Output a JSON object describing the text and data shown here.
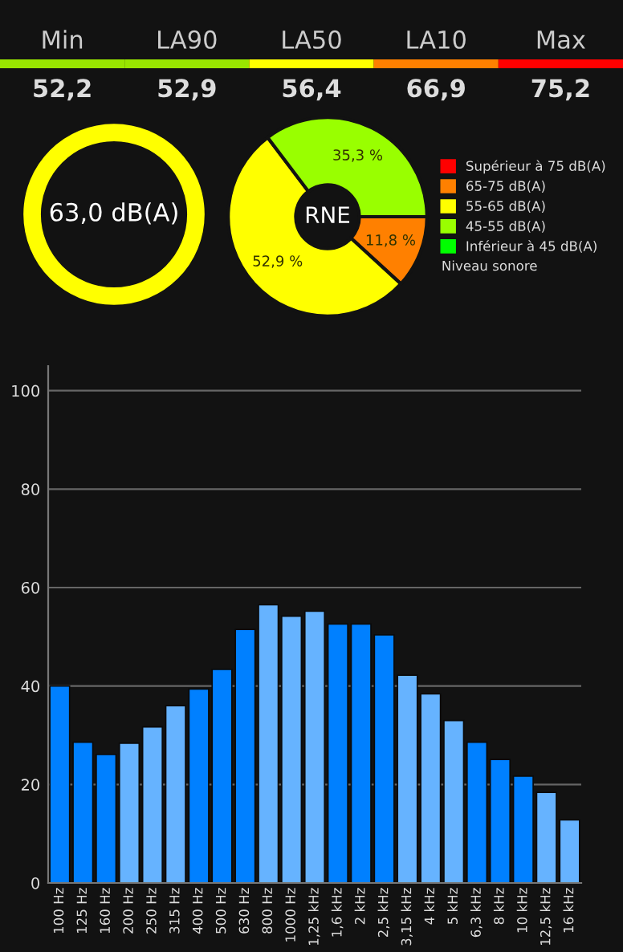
{
  "chart_data": [
    {
      "type": "other",
      "categories": [
        "Min",
        "LA90",
        "LA50",
        "LA10",
        "Max"
      ],
      "values": [
        52.2,
        52.9,
        56.4,
        66.9,
        75.2
      ],
      "colors": [
        "#99e600",
        "#99e600",
        "#ffff00",
        "#ff8000",
        "#ff0000"
      ],
      "value_labels": [
        "52,2",
        "52,9",
        "56,4",
        "66,9",
        "75,2"
      ]
    },
    {
      "type": "other",
      "annotations": [
        "63,0 dB(A)"
      ],
      "color": "#ffff00"
    },
    {
      "type": "donut",
      "categories": [
        "Supérieur à 75 dB(A)",
        "65-75 dB(A)",
        "55-65 dB(A)",
        "45-55 dB(A)",
        "Inférieur à 45 dB(A)"
      ],
      "values": [
        0,
        11.8,
        52.9,
        35.3,
        0
      ],
      "colors": [
        "#ff0000",
        "#ff8000",
        "#ffff00",
        "#99ff00",
        "#00ff00"
      ],
      "value_labels": [
        null,
        "11,8 %",
        "52,9 %",
        "35,3 %",
        null
      ],
      "legend_title": "Niveau sonore",
      "legend": "right",
      "annotations": [
        "RNE"
      ]
    },
    {
      "type": "bar",
      "categories": [
        "100 Hz",
        "125 Hz",
        "160 Hz",
        "200 Hz",
        "250 Hz",
        "315 Hz",
        "400 Hz",
        "500 Hz",
        "630 Hz",
        "800 Hz",
        "1000 Hz",
        "1,25 kHz",
        "1,6 kHz",
        "2 kHz",
        "2,5 kHz",
        "3,15 kHz",
        "4 kHz",
        "5 kHz",
        "6,3 kHz",
        "8 kHz",
        "10 kHz",
        "12,5 kHz",
        "16 kHz"
      ],
      "values": [
        40,
        28.6,
        26.1,
        28.4,
        31.7,
        36,
        39.4,
        43.4,
        51.5,
        56.5,
        54.2,
        55.2,
        52.6,
        52.6,
        50.4,
        42.2,
        38.4,
        33,
        28.6,
        25.1,
        21.7,
        18.4,
        12.8
      ],
      "colors": [
        "#0080ff",
        "#0080ff",
        "#0080ff",
        "#66b3ff",
        "#66b3ff",
        "#66b3ff",
        "#0080ff",
        "#0080ff",
        "#0080ff",
        "#66b3ff",
        "#66b3ff",
        "#66b3ff",
        "#0080ff",
        "#0080ff",
        "#0080ff",
        "#66b3ff",
        "#66b3ff",
        "#66b3ff",
        "#0080ff",
        "#0080ff",
        "#0080ff",
        "#66b3ff",
        "#66b3ff"
      ],
      "ylim": [
        0,
        105
      ],
      "yticks": [
        0,
        20,
        40,
        60,
        80,
        100
      ],
      "grid": "y"
    }
  ]
}
